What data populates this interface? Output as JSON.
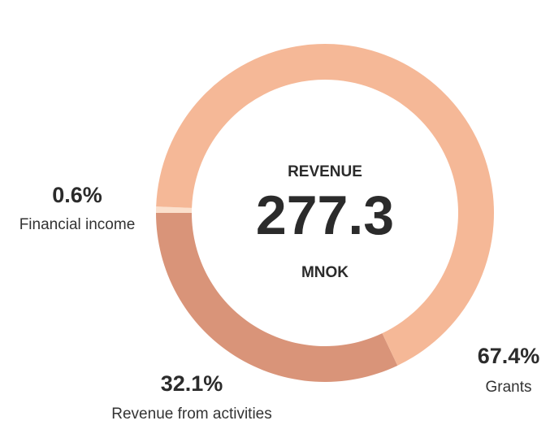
{
  "chart_data": {
    "type": "donut",
    "center_title": "REVENUE",
    "center_value": 277.3,
    "center_unit": "MNOK",
    "categories": [
      "Grants",
      "Revenue from activities",
      "Financial income"
    ],
    "values": [
      67.4,
      32.1,
      0.6
    ],
    "value_labels": [
      "67.4%",
      "32.1%",
      "0.6%"
    ],
    "colors": [
      "#f5b897",
      "#d99479",
      "#fbe0cd"
    ]
  }
}
